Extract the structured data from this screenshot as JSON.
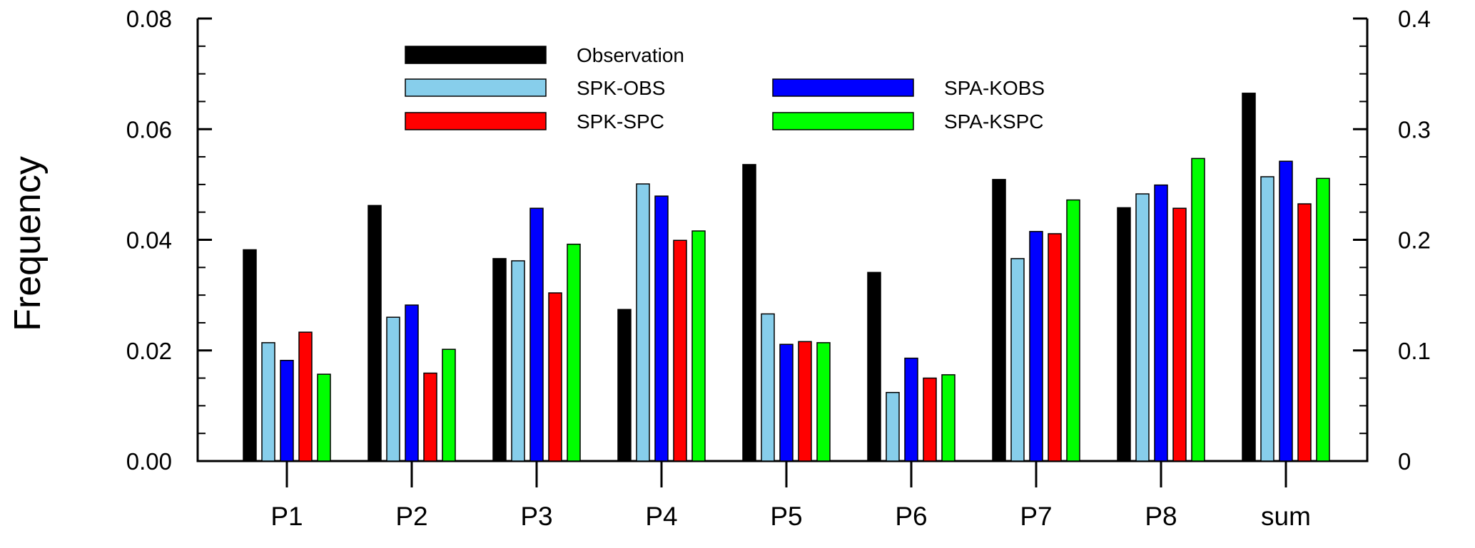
{
  "chart_data": {
    "type": "bar",
    "title": "",
    "xlabel": "",
    "ylabel": "Frequency",
    "categories": [
      "P1",
      "P2",
      "P3",
      "P4",
      "P5",
      "P6",
      "P7",
      "P8",
      "sum"
    ],
    "ylim": [
      0,
      0.08
    ],
    "y_ticks": [
      "0.00",
      "0.02",
      "0.04",
      "0.06",
      "0.08"
    ],
    "y2lim": [
      0,
      0.4
    ],
    "y2_ticks": [
      "0",
      "0.1",
      "0.2",
      "0.3",
      "0.4"
    ],
    "sum_uses_right_axis": true,
    "grid": false,
    "legend_position": "top-left",
    "series": [
      {
        "name": "Observation",
        "color": "#000000",
        "values": [
          0.0382,
          0.0462,
          0.0366,
          0.0274,
          0.0536,
          0.0341,
          0.0509,
          0.0458,
          0.3325
        ]
      },
      {
        "name": "SPK-OBS",
        "color": "#87CEEB",
        "values": [
          0.0214,
          0.026,
          0.0362,
          0.0501,
          0.0266,
          0.0124,
          0.0366,
          0.0483,
          0.257
        ]
      },
      {
        "name": "SPA-KOBS",
        "color": "#0000FF",
        "values": [
          0.0182,
          0.0282,
          0.0457,
          0.0479,
          0.0211,
          0.0186,
          0.0415,
          0.0499,
          0.271
        ]
      },
      {
        "name": "SPK-SPC",
        "color": "#FF0000",
        "values": [
          0.0233,
          0.0159,
          0.0304,
          0.0399,
          0.0216,
          0.015,
          0.0411,
          0.0457,
          0.2325
        ]
      },
      {
        "name": "SPA-KSPC",
        "color": "#00FF00",
        "values": [
          0.0157,
          0.0202,
          0.0392,
          0.0416,
          0.0214,
          0.0156,
          0.0472,
          0.0547,
          0.2555
        ]
      }
    ]
  }
}
